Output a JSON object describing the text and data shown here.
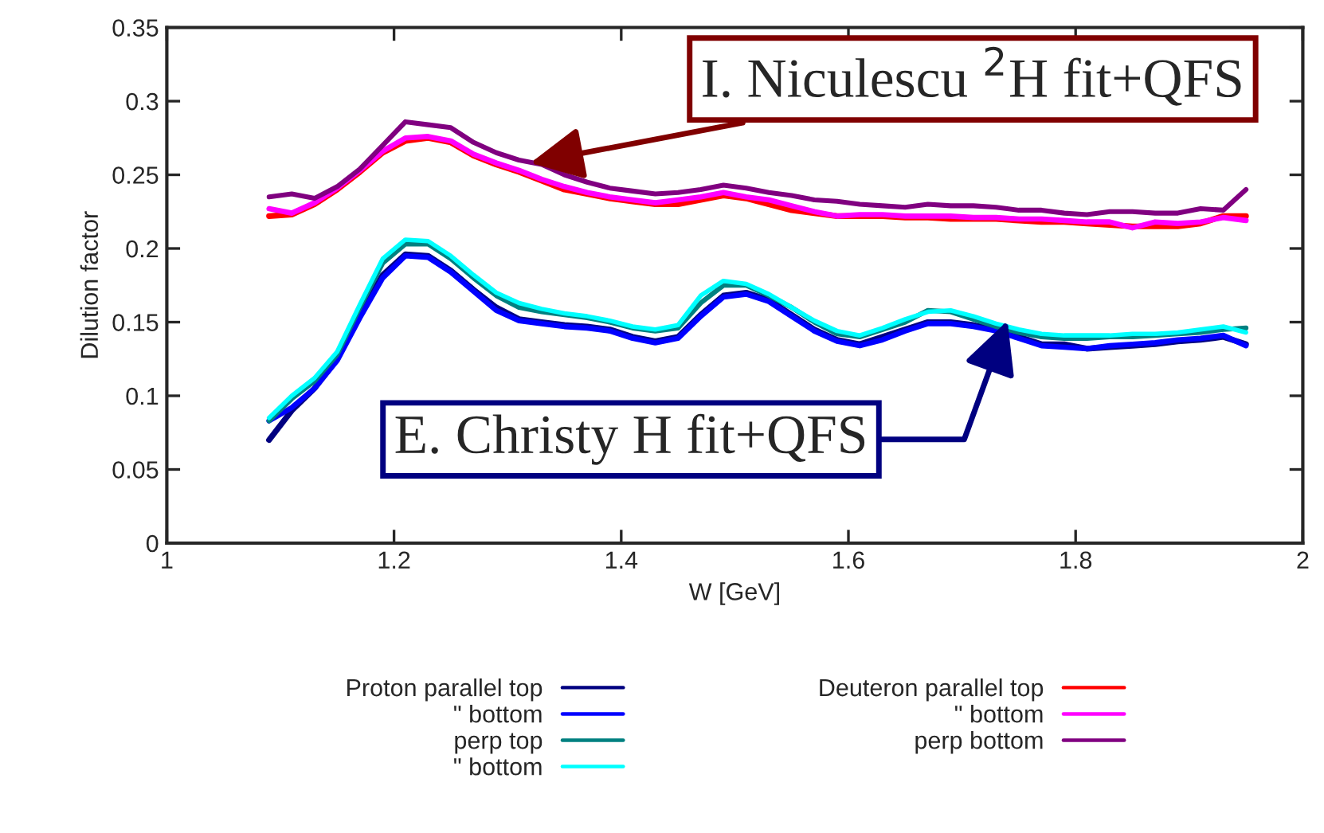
{
  "chart_data": {
    "type": "line",
    "xlabel": "W [GeV]",
    "ylabel": "Dilution factor",
    "xlim": [
      1,
      2
    ],
    "xticks": [
      1,
      1.2,
      1.4,
      1.6,
      1.8,
      2
    ],
    "ylim": [
      0,
      0.35
    ],
    "yticks": [
      0,
      0.05,
      0.1,
      0.15,
      0.2,
      0.25,
      0.3,
      0.35
    ],
    "x": [
      1.09,
      1.11,
      1.13,
      1.15,
      1.17,
      1.19,
      1.21,
      1.23,
      1.25,
      1.27,
      1.29,
      1.31,
      1.33,
      1.35,
      1.37,
      1.39,
      1.41,
      1.43,
      1.45,
      1.47,
      1.49,
      1.51,
      1.53,
      1.55,
      1.57,
      1.59,
      1.61,
      1.63,
      1.65,
      1.67,
      1.69,
      1.71,
      1.73,
      1.75,
      1.77,
      1.79,
      1.81,
      1.83,
      1.85,
      1.87,
      1.89,
      1.91,
      1.93,
      1.95
    ],
    "series": [
      {
        "name": "Proton parallel top",
        "color": "#000080",
        "values": [
          0.07,
          0.09,
          0.105,
          0.125,
          0.155,
          0.182,
          0.196,
          0.195,
          0.185,
          0.172,
          0.16,
          0.152,
          0.15,
          0.148,
          0.147,
          0.145,
          0.14,
          0.137,
          0.14,
          0.155,
          0.168,
          0.17,
          0.165,
          0.155,
          0.145,
          0.138,
          0.135,
          0.14,
          0.145,
          0.15,
          0.15,
          0.148,
          0.145,
          0.14,
          0.135,
          0.135,
          0.132,
          0.133,
          0.134,
          0.135,
          0.137,
          0.138,
          0.14,
          0.135
        ]
      },
      {
        "name": "\" bottom",
        "color": "#0000ff",
        "values": [
          0.083,
          0.092,
          0.105,
          0.124,
          0.153,
          0.18,
          0.195,
          0.194,
          0.184,
          0.171,
          0.158,
          0.151,
          0.149,
          0.147,
          0.146,
          0.144,
          0.139,
          0.136,
          0.139,
          0.154,
          0.167,
          0.169,
          0.164,
          0.154,
          0.144,
          0.137,
          0.134,
          0.138,
          0.144,
          0.149,
          0.149,
          0.147,
          0.144,
          0.139,
          0.134,
          0.133,
          0.132,
          0.134,
          0.135,
          0.136,
          0.138,
          0.139,
          0.141,
          0.134
        ]
      },
      {
        "name": "perp top",
        "color": "#008080",
        "values": [
          0.083,
          0.098,
          0.11,
          0.128,
          0.16,
          0.19,
          0.203,
          0.203,
          0.193,
          0.18,
          0.168,
          0.16,
          0.157,
          0.155,
          0.153,
          0.15,
          0.146,
          0.144,
          0.146,
          0.163,
          0.175,
          0.175,
          0.168,
          0.16,
          0.15,
          0.142,
          0.14,
          0.145,
          0.15,
          0.158,
          0.157,
          0.152,
          0.147,
          0.143,
          0.14,
          0.139,
          0.139,
          0.14,
          0.14,
          0.141,
          0.142,
          0.143,
          0.145,
          0.146
        ]
      },
      {
        "name": "\" bottom",
        "color": "#00ffff",
        "values": [
          0.085,
          0.1,
          0.112,
          0.13,
          0.162,
          0.193,
          0.206,
          0.205,
          0.195,
          0.182,
          0.17,
          0.163,
          0.159,
          0.156,
          0.154,
          0.151,
          0.147,
          0.145,
          0.148,
          0.168,
          0.178,
          0.176,
          0.169,
          0.16,
          0.151,
          0.144,
          0.141,
          0.146,
          0.152,
          0.157,
          0.158,
          0.154,
          0.149,
          0.145,
          0.142,
          0.141,
          0.141,
          0.141,
          0.142,
          0.142,
          0.143,
          0.145,
          0.147,
          0.143
        ]
      },
      {
        "name": "Deuteron parallel top",
        "color": "#ff0000",
        "values": [
          0.222,
          0.223,
          0.23,
          0.24,
          0.252,
          0.265,
          0.273,
          0.275,
          0.272,
          0.263,
          0.257,
          0.252,
          0.246,
          0.24,
          0.237,
          0.234,
          0.232,
          0.23,
          0.23,
          0.233,
          0.236,
          0.234,
          0.23,
          0.226,
          0.224,
          0.222,
          0.222,
          0.222,
          0.221,
          0.221,
          0.22,
          0.22,
          0.22,
          0.219,
          0.218,
          0.218,
          0.217,
          0.216,
          0.215,
          0.215,
          0.215,
          0.217,
          0.222,
          0.222
        ]
      },
      {
        "name": "\" bottom",
        "color": "#ff00ff",
        "values": [
          0.227,
          0.224,
          0.231,
          0.241,
          0.253,
          0.266,
          0.275,
          0.276,
          0.273,
          0.264,
          0.258,
          0.253,
          0.247,
          0.242,
          0.238,
          0.235,
          0.233,
          0.231,
          0.233,
          0.235,
          0.238,
          0.235,
          0.233,
          0.229,
          0.225,
          0.222,
          0.223,
          0.223,
          0.222,
          0.222,
          0.222,
          0.221,
          0.221,
          0.22,
          0.22,
          0.219,
          0.218,
          0.218,
          0.214,
          0.218,
          0.217,
          0.218,
          0.221,
          0.219
        ]
      },
      {
        "name": "perp bottom",
        "color": "#800080",
        "values": [
          0.235,
          0.237,
          0.234,
          0.242,
          0.254,
          0.27,
          0.286,
          0.284,
          0.282,
          0.272,
          0.265,
          0.26,
          0.257,
          0.25,
          0.245,
          0.241,
          0.239,
          0.237,
          0.238,
          0.24,
          0.243,
          0.241,
          0.238,
          0.236,
          0.233,
          0.232,
          0.23,
          0.229,
          0.228,
          0.23,
          0.229,
          0.229,
          0.228,
          0.226,
          0.226,
          0.224,
          0.223,
          0.225,
          0.225,
          0.224,
          0.224,
          0.227,
          0.226,
          0.24
        ]
      }
    ],
    "annotations": [
      {
        "text": "I. Niculescu $^{2}$H fit+QFS",
        "x": 1.32,
        "y": 0.258
      },
      {
        "text": "E. Christy H fit+QFS",
        "x": 1.74,
        "y": 0.151
      }
    ],
    "legend": "bottom",
    "grid": false,
    "marker": "none",
    "line_style": "solid"
  }
}
